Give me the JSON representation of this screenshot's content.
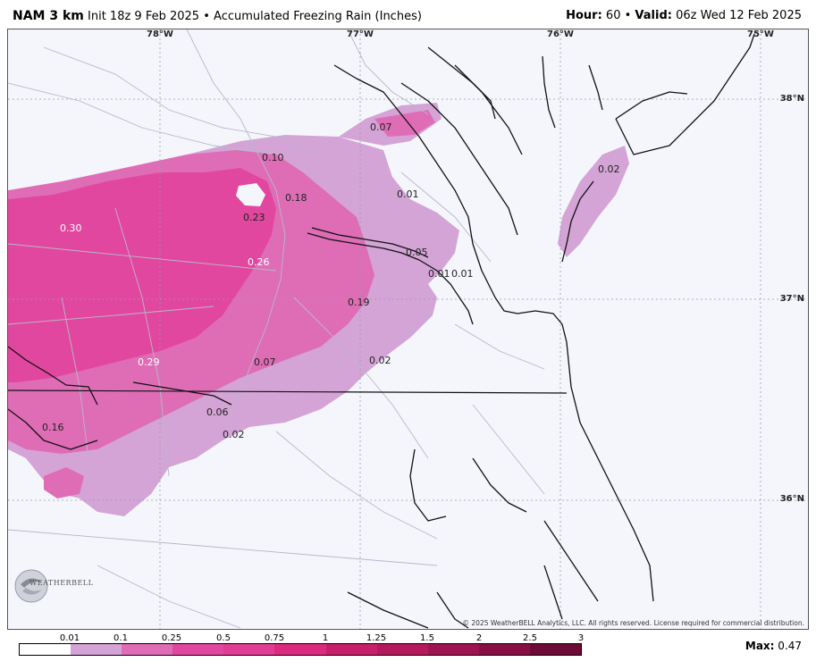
{
  "header": {
    "model": "NAM 3 km",
    "init": "Init 18z 9 Feb 2025",
    "separator": "•",
    "product": "Accumulated Freezing Rain (Inches)",
    "hour_label": "Hour:",
    "hour_value": "60",
    "valid_label": "Valid:",
    "valid_value": "06z Wed 12 Feb 2025"
  },
  "map": {
    "lon_labels": [
      "78°W",
      "77°W",
      "76°W",
      "75°W"
    ],
    "lat_labels": [
      "38°N",
      "37°N",
      "36°N"
    ],
    "value_labels": [
      "0.07",
      "0.10",
      "0.18",
      "0.01",
      "0.23",
      "0.30",
      "0.26",
      "0.05",
      "0.01",
      "0.01",
      "0.19",
      "0.29",
      "0.07",
      "0.02",
      "0.06",
      "0.02",
      "0.16",
      "0.02"
    ],
    "copyright": "© 2025 WeatherBELL Analytics, LLC. All rights reserved. License required for commercial distribution.",
    "logo_text": "WEATHERBELL",
    "colors": {
      "background": "#f4f6fc",
      "light": "#d4a4d6",
      "medium": "#df6db6",
      "heavy": "#e2479f",
      "coast": "#111111",
      "roads": "#b8b8c8"
    }
  },
  "legend": {
    "tick_labels": [
      "0.01",
      "0.1",
      "0.25",
      "0.5",
      "0.75",
      "1",
      "1.25",
      "1.5",
      "2",
      "2.5",
      "3"
    ],
    "colors": [
      "#ffffff",
      "#d4a4d6",
      "#df6db6",
      "#e2479f",
      "#e23d94",
      "#dc2a7e",
      "#c71f6a",
      "#b3195c",
      "#9e1450",
      "#870f44",
      "#6d0a35"
    ],
    "max_label": "Max:",
    "max_value": "0.47"
  }
}
